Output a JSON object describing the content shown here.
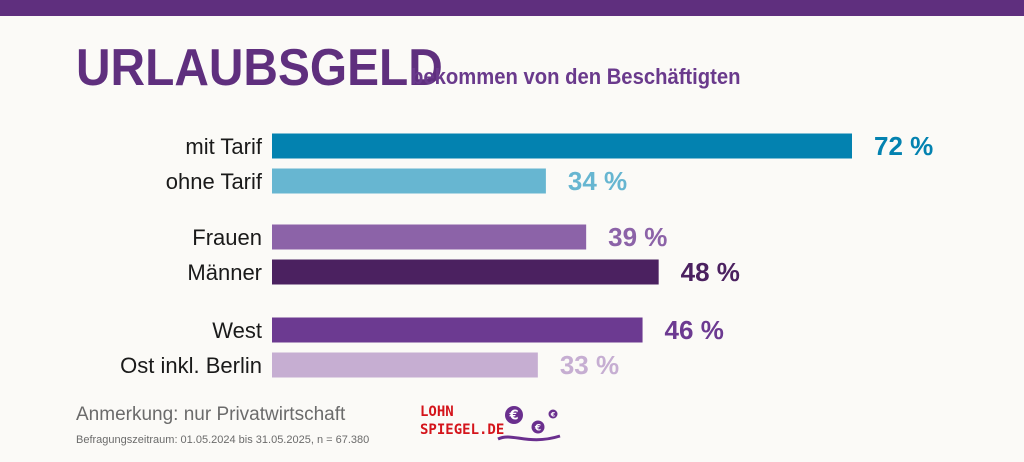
{
  "header": {
    "title": "URLAUBSGELD",
    "subtitle": "bekommen von den Beschäftigten"
  },
  "chart_data": {
    "type": "bar",
    "orientation": "horizontal",
    "title": "URLAUBSGELD",
    "subtitle": "bekommen von den Beschäftigten",
    "xlim": [
      0,
      100
    ],
    "unit": "%",
    "categories": [
      "mit Tarif",
      "ohne Tarif",
      "Frauen",
      "Männer",
      "West",
      "Ost inkl. Berlin"
    ],
    "values": [
      72,
      34,
      39,
      48,
      46,
      33
    ],
    "labels": [
      "72 %",
      "34 %",
      "39 %",
      "48 %",
      "46 %",
      "33 %"
    ],
    "groups": [
      [
        "mit Tarif",
        "ohne Tarif"
      ],
      [
        "Frauen",
        "Männer"
      ],
      [
        "West",
        "Ost inkl. Berlin"
      ]
    ],
    "colors": [
      "#0382b0",
      "#67b6d1",
      "#8c63a8",
      "#4b2160",
      "#6c3a91",
      "#c6aed2"
    ]
  },
  "footer": {
    "note": "Anmerkung: nur Privatwirtschaft",
    "period": "Befragungszeitraum: 01.05.2024 bis 31.05.2025, n = 67.380"
  },
  "logo": {
    "line1": "LOHN",
    "line2": "SPIEGEL.DE",
    "symbol": "€",
    "accent_color": "#6a2f8e",
    "text_color": "#d4141b"
  }
}
